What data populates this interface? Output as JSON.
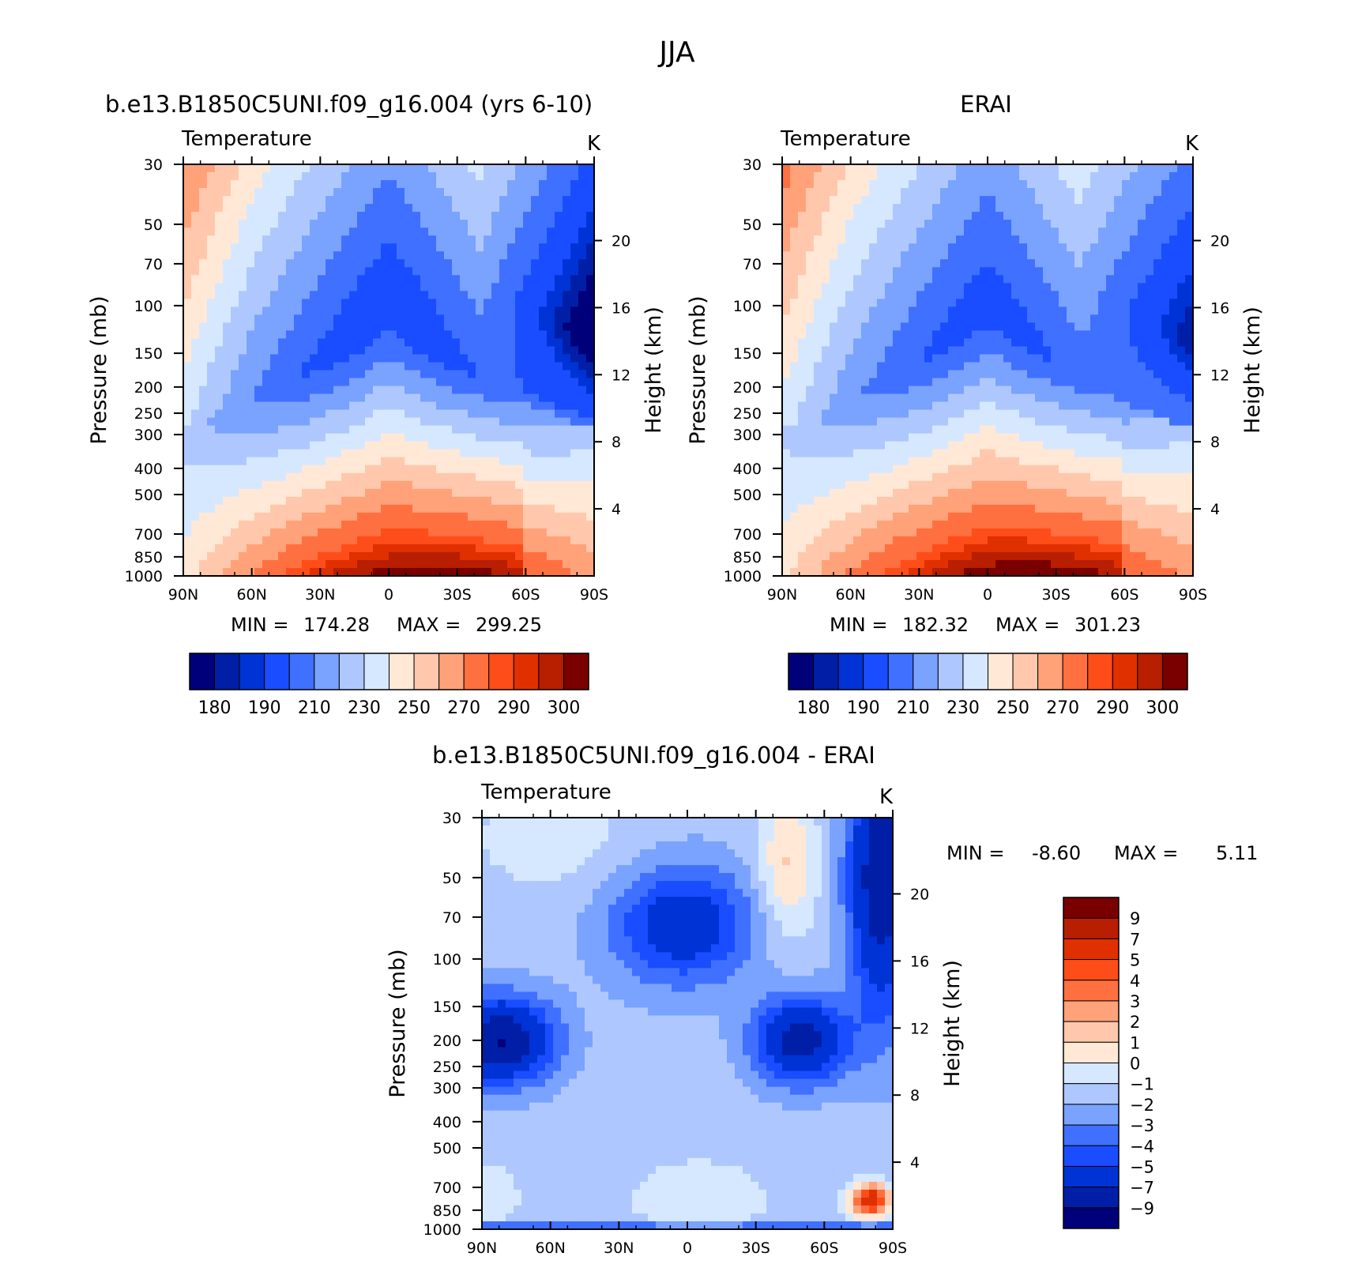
{
  "figure": {
    "title": "JJA"
  },
  "palette": {
    "abs": [
      "#00007a",
      "#001fa6",
      "#0033d6",
      "#1a4dff",
      "#4070ff",
      "#7aa2ff",
      "#aec8ff",
      "#d6e8ff",
      "#ffe8d6",
      "#ffc8ad",
      "#ffa27a",
      "#ff7040",
      "#ff4d1a",
      "#e03000",
      "#b81e00",
      "#7a0000"
    ],
    "diff": [
      "#00007a",
      "#001fa6",
      "#0033d6",
      "#1a4dff",
      "#4070ff",
      "#7aa2ff",
      "#aec8ff",
      "#d6e8ff",
      "#ffe8d6",
      "#ffc8ad",
      "#ffa27a",
      "#ff7040",
      "#ff4d1a",
      "#e03000",
      "#b81e00",
      "#7a0000"
    ]
  },
  "chart_data": [
    {
      "type": "heatmap",
      "id": "model",
      "title": "b.e13.B1850C5UNI.f09_g16.004 (yrs 6-10)",
      "subtitle": "Temperature",
      "units": "K",
      "xlabel": "",
      "ylabel": "Pressure (mb)",
      "y2label": "Height (km)",
      "x_ticks": [
        "90N",
        "60N",
        "30N",
        "0",
        "30S",
        "60S",
        "90S"
      ],
      "x_range": [
        -90,
        90
      ],
      "y_ticks": [
        30,
        50,
        70,
        100,
        150,
        200,
        250,
        300,
        400,
        500,
        700,
        850,
        1000
      ],
      "y_range_mb": [
        30,
        1000
      ],
      "y_scale": "log",
      "y2_ticks": [
        4,
        8,
        12,
        16,
        20
      ],
      "min_label": "MIN =",
      "min": "174.28",
      "max_label": "MAX =",
      "max": "299.25",
      "colorbar_labels": [
        "180",
        "190",
        "210",
        "230",
        "250",
        "270",
        "290",
        "300"
      ],
      "field_params": {
        "surface": 300,
        "trop_eq": 190,
        "trop_pole": 225,
        "strat_pole_s": 175
      }
    },
    {
      "type": "heatmap",
      "id": "obs",
      "title": "ERAI",
      "subtitle": "Temperature",
      "units": "K",
      "xlabel": "",
      "ylabel": "Pressure (mb)",
      "y2label": "Height (km)",
      "x_ticks": [
        "90N",
        "60N",
        "30N",
        "0",
        "30S",
        "60S",
        "90S"
      ],
      "x_range": [
        -90,
        90
      ],
      "y_ticks": [
        30,
        50,
        70,
        100,
        150,
        200,
        250,
        300,
        400,
        500,
        700,
        850,
        1000
      ],
      "y_range_mb": [
        30,
        1000
      ],
      "y_scale": "log",
      "y2_ticks": [
        4,
        8,
        12,
        16,
        20
      ],
      "min_label": "MIN =",
      "min": "182.32",
      "max_label": "MAX =",
      "max": "301.23",
      "colorbar_labels": [
        "180",
        "190",
        "210",
        "230",
        "250",
        "270",
        "290",
        "300"
      ],
      "field_params": {
        "surface": 301,
        "trop_eq": 193,
        "trop_pole": 228,
        "strat_pole_s": 185
      }
    },
    {
      "type": "heatmap",
      "id": "diff",
      "title": "b.e13.B1850C5UNI.f09_g16.004 - ERAI",
      "subtitle": "Temperature",
      "units": "K",
      "xlabel": "",
      "ylabel": "Pressure (mb)",
      "y2label": "Height (km)",
      "x_ticks": [
        "90N",
        "60N",
        "30N",
        "0",
        "30S",
        "60S",
        "90S"
      ],
      "x_range": [
        -90,
        90
      ],
      "y_ticks": [
        30,
        50,
        70,
        100,
        150,
        200,
        250,
        300,
        400,
        500,
        700,
        850,
        1000
      ],
      "y_range_mb": [
        30,
        1000
      ],
      "y_scale": "log",
      "y2_ticks": [
        4,
        8,
        12,
        16,
        20
      ],
      "min_label": "MIN =",
      "min": "-8.60",
      "max_label": "MAX =",
      "max": "5.11",
      "colorbar_labels": [
        "9",
        "7",
        "5",
        "4",
        "3",
        "2",
        "1",
        "0",
        "−1",
        "−2",
        "−3",
        "−4",
        "−5",
        "−7",
        "−9"
      ]
    }
  ]
}
